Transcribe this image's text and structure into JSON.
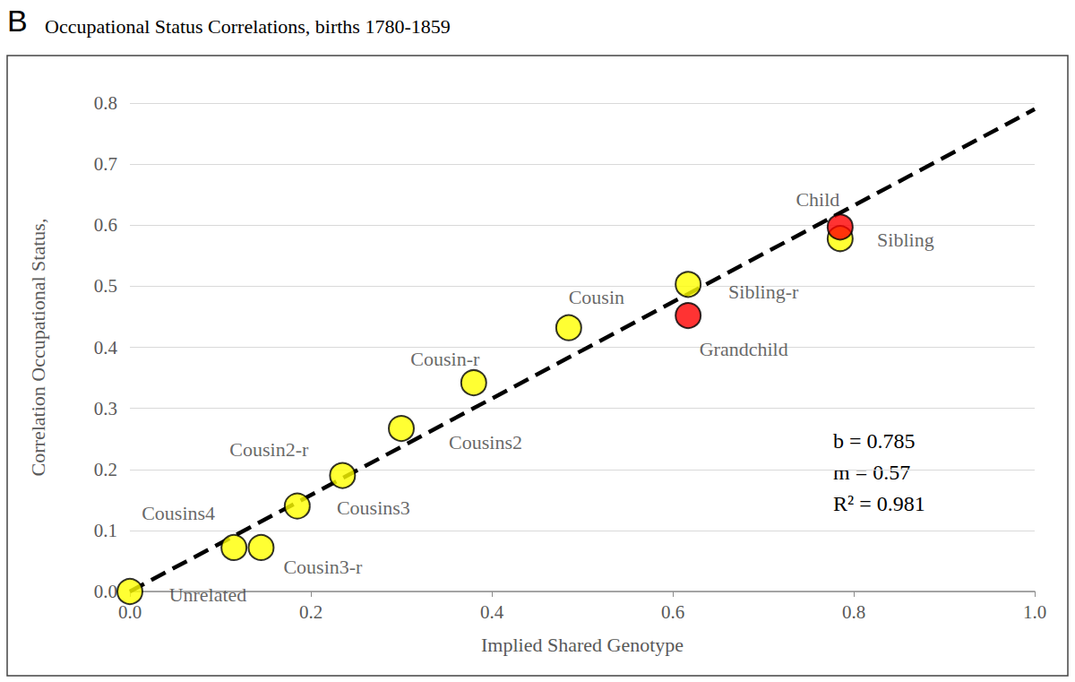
{
  "chart_data": {
    "type": "scatter",
    "panel": "B",
    "title": "Occupational Status Correlations, births 1780-1859",
    "x_label": "Implied Shared Genotype",
    "y_label": "Correlation Occupational Status,",
    "labels": [
      "Unrelated",
      "Cousins4",
      "Cousin3-r",
      "Cousins3",
      "Cousin2-r",
      "Cousins2",
      "Cousin-r",
      "Cousin",
      "Sibling-r",
      "Grandchild",
      "Sibling",
      "Child"
    ],
    "x": [
      0,
      0.115,
      0.145,
      0.185,
      0.235,
      0.3,
      0.38,
      0.485,
      0.617,
      0.617,
      0.785,
      0.785
    ],
    "values": [
      0,
      0.072,
      0.072,
      0.14,
      0.19,
      0.267,
      0.342,
      0.432,
      0.503,
      0.452,
      0.578,
      0.597
    ],
    "colors": [
      "#ffff00",
      "#ffff00",
      "#ffff00",
      "#ffff00",
      "#ffff00",
      "#ffff00",
      "#ffff00",
      "#ffff00",
      "#ffff00",
      "#ff0000",
      "#ffff00",
      "#ff0000"
    ],
    "marker": "circle",
    "trend_line": {
      "x": [
        0,
        1
      ],
      "values": [
        0,
        0.79
      ],
      "line_style": "dashed",
      "color": "#000000"
    },
    "annotations": [
      "b = 0.785",
      "m = 0.57",
      "R² = 0.981"
    ],
    "xlim": [
      0,
      1
    ],
    "ylim": [
      0,
      0.8
    ],
    "xticks": [
      {
        "value": 0,
        "label": "0.0"
      },
      {
        "value": 0.2,
        "label": "0.2"
      },
      {
        "value": 0.4,
        "label": "0.4"
      },
      {
        "value": 0.6,
        "label": "0.6"
      },
      {
        "value": 0.8,
        "label": "0.8"
      },
      {
        "value": 1,
        "label": "1.0"
      }
    ],
    "yticks": [
      {
        "value": 0,
        "label": "0.0"
      },
      {
        "value": 0.1,
        "label": "0.1"
      },
      {
        "value": 0.2,
        "label": "0.2"
      },
      {
        "value": 0.3,
        "label": "0.3"
      },
      {
        "value": 0.4,
        "label": "0.4"
      },
      {
        "value": 0.5,
        "label": "0.5"
      },
      {
        "value": 0.6,
        "label": "0.6"
      },
      {
        "value": 0.7,
        "label": "0.7"
      },
      {
        "value": 0.8,
        "label": "0.8"
      }
    ],
    "grid": "y"
  }
}
